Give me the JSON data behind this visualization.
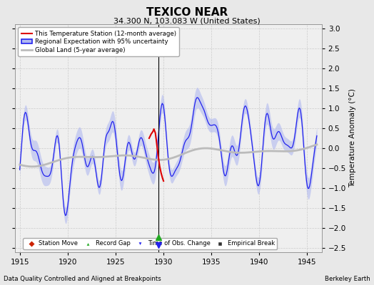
{
  "title": "TEXICO NEAR",
  "subtitle": "34.300 N, 103.083 W (United States)",
  "xlabel_left": "Data Quality Controlled and Aligned at Breakpoints",
  "xlabel_right": "Berkeley Earth",
  "ylabel": "Temperature Anomaly (°C)",
  "xlim": [
    1914.5,
    1946.5
  ],
  "ylim": [
    -2.6,
    3.1
  ],
  "yticks": [
    -2.5,
    -2,
    -1.5,
    -1,
    -0.5,
    0,
    0.5,
    1,
    1.5,
    2,
    2.5,
    3
  ],
  "xticks": [
    1915,
    1920,
    1925,
    1930,
    1935,
    1940,
    1945
  ],
  "bg_color": "#e8e8e8",
  "plot_bg_color": "#efefef",
  "regional_color": "#2222ee",
  "regional_shade_color": "#b0b8f0",
  "station_color": "#dd0000",
  "global_color": "#bbbbbb",
  "legend_labels": [
    "This Temperature Station (12-month average)",
    "Regional Expectation with 95% uncertainty",
    "Global Land (5-year average)"
  ],
  "marker_legend": [
    "Station Move",
    "Record Gap",
    "Time of Obs. Change",
    "Empirical Break"
  ],
  "breakpoint_x": 1929.5,
  "time_of_obs_x": 1929.5,
  "record_gap_x": 1929.5
}
